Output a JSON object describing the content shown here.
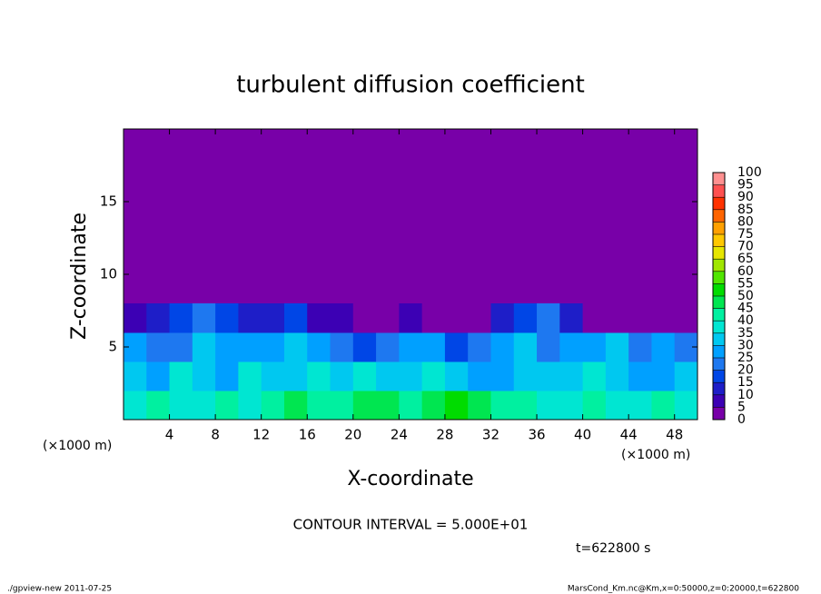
{
  "chart_data": {
    "type": "heatmap",
    "title": "turbulent diffusion coefficient",
    "xlabel": "X-coordinate",
    "ylabel": "Z-coordinate",
    "x_unit": "(×1000 m)",
    "xlim": [
      0,
      50
    ],
    "ylim": [
      0,
      20
    ],
    "xticks": [
      4,
      8,
      12,
      16,
      20,
      24,
      28,
      32,
      36,
      40,
      44,
      48
    ],
    "yticks": [
      5,
      10,
      15
    ],
    "x": [
      1,
      3,
      5,
      7,
      9,
      11,
      13,
      15,
      17,
      19,
      21,
      23,
      25,
      27,
      29,
      31,
      33,
      35,
      37,
      39,
      41,
      43,
      45,
      47,
      49
    ],
    "y": [
      1,
      3,
      5,
      7
    ],
    "cell_size": 2,
    "z": [
      [
        35,
        40,
        35,
        38,
        40,
        35,
        42,
        45,
        40,
        42,
        45,
        48,
        40,
        45,
        50,
        45,
        42,
        40,
        38,
        35,
        42,
        38,
        35,
        40,
        35
      ],
      [
        30,
        25,
        35,
        30,
        28,
        35,
        30,
        32,
        35,
        30,
        35,
        30,
        32,
        35,
        30,
        28,
        25,
        30,
        32,
        30,
        35,
        30,
        28,
        25,
        30
      ],
      [
        25,
        20,
        22,
        30,
        25,
        28,
        25,
        30,
        25,
        20,
        18,
        22,
        28,
        25,
        15,
        20,
        25,
        30,
        22,
        25,
        28,
        30,
        20,
        25,
        22
      ],
      [
        5,
        10,
        15,
        20,
        15,
        10,
        12,
        15,
        8,
        5,
        0,
        0,
        5,
        0,
        0,
        0,
        10,
        15,
        20,
        10,
        0,
        0,
        0,
        0,
        0
      ]
    ],
    "colorbar_ticks": [
      0,
      5,
      10,
      15,
      20,
      25,
      30,
      35,
      40,
      45,
      50,
      55,
      60,
      65,
      70,
      75,
      80,
      85,
      90,
      95,
      100
    ],
    "colors": [
      "#7800a8",
      "#3c00b4",
      "#1e1ec8",
      "#0046e6",
      "#1e78f0",
      "#00a0ff",
      "#00c8f0",
      "#00e6d2",
      "#00f0a0",
      "#00e650",
      "#00dc00",
      "#50e600",
      "#a0e600",
      "#e6e600",
      "#ffc800",
      "#ffa000",
      "#ff6400",
      "#ff3200",
      "#ff5050",
      "#ff9090"
    ],
    "contour_interval": "CONTOUR INTERVAL = 5.000E+01",
    "time": "t=622800 s",
    "footer_left": "./gpview-new  2011-07-25",
    "footer_right": "MarsCond_Km.nc@Km,x=0:50000,z=0:20000,t=622800"
  }
}
